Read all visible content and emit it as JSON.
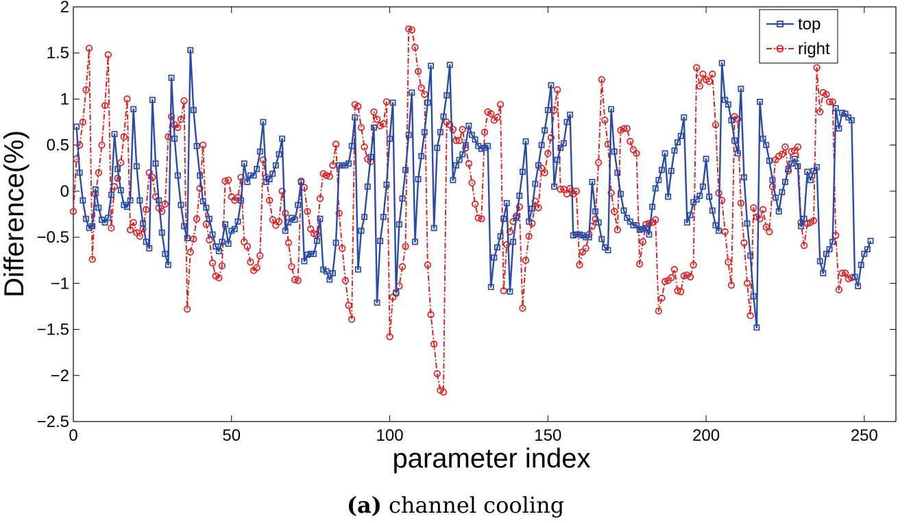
{
  "chart_data": {
    "type": "line",
    "title": "",
    "xlabel": "parameter index",
    "ylabel": "Difference(%)",
    "xlim": [
      0,
      260
    ],
    "ylim": [
      -2.5,
      2
    ],
    "xticks": [
      0,
      50,
      100,
      150,
      200,
      250
    ],
    "xtick_labels": [
      "0",
      "50",
      "100",
      "150",
      "200",
      "250"
    ],
    "yticks": [
      -2.5,
      -2,
      -1.5,
      -1,
      -0.5,
      0,
      0.5,
      1,
      1.5,
      2
    ],
    "ytick_labels": [
      "−2.5",
      "−2",
      "−1.5",
      "−1",
      "−0.5",
      "0",
      "0.5",
      "1",
      "1.5",
      "2"
    ],
    "legend_position": "top-right",
    "series": [
      {
        "name": "top",
        "color": "#2a4aa8",
        "marker": "square",
        "linestyle": "solid",
        "x_start": 1,
        "values": [
          0.7,
          0.2,
          -0.1,
          -0.3,
          -0.4,
          -0.38,
          0.02,
          -0.18,
          -0.31,
          -0.34,
          -0.29,
          -0.04,
          0.62,
          0.24,
          0.01,
          -0.15,
          -0.17,
          -0.1,
          0.89,
          0.27,
          -0.1,
          -0.35,
          -0.55,
          -0.62,
          0.99,
          0.3,
          -0.1,
          -0.45,
          -0.68,
          -0.8,
          1.23,
          0.57,
          0.17,
          -0.15,
          -0.38,
          -0.51,
          1.53,
          0.88,
          0.49,
          0.17,
          -0.11,
          -0.18,
          -0.3,
          -0.47,
          -0.6,
          -0.65,
          -0.55,
          -0.36,
          -0.57,
          -0.43,
          -0.41,
          -0.33,
          -0.1,
          0.3,
          0.1,
          0.17,
          0.17,
          0.24,
          0.43,
          0.75,
          0.1,
          0.13,
          0.19,
          0.28,
          0.4,
          0.57,
          -0.43,
          -0.34,
          -0.29,
          -0.31,
          -0.15,
          0.1,
          -0.76,
          -0.69,
          -0.68,
          -0.68,
          -0.54,
          -0.3,
          -0.85,
          -0.87,
          -0.96,
          -0.89,
          -0.56,
          0.28,
          0.28,
          0.28,
          0.3,
          0.49,
          0.8,
          -0.85,
          -0.43,
          -0.28,
          0.05,
          0.37,
          0.69,
          -1.21,
          -0.54,
          -0.28,
          0.07,
          0.57,
          0.96,
          -1.1,
          -0.36,
          -0.08,
          0.23,
          0.61,
          1.07,
          -0.55,
          0.13,
          0.38,
          0.64,
          0.96,
          1.36,
          -0.4,
          0.47,
          0.64,
          0.81,
          1.04,
          1.37,
          0.12,
          0.28,
          0.34,
          0.4,
          0.5,
          0.71,
          0.61,
          0.56,
          0.49,
          0.46,
          0.47,
          0.49,
          -1.04,
          -0.72,
          -0.61,
          -0.49,
          -0.3,
          -0.13,
          -1.09,
          -0.55,
          -0.29,
          -0.05,
          0.21,
          0.54,
          -0.33,
          -0.19,
          0.08,
          0.28,
          0.5,
          0.66,
          0.88,
          1.15,
          0.05,
          0.34,
          0.47,
          0.52,
          0.75,
          0.83,
          -0.48,
          -0.47,
          -0.47,
          -0.48,
          -0.5,
          -0.5,
          0.1,
          -0.22,
          -0.34,
          -0.52,
          -0.61,
          -0.64,
          0.89,
          0.43,
          0.2,
          -0.03,
          -0.21,
          -0.29,
          -0.33,
          -0.37,
          -0.37,
          -0.42,
          -0.41,
          -0.4,
          -0.47,
          -0.17,
          0.03,
          0.12,
          0.23,
          0.41,
          -0.06,
          0.22,
          0.44,
          0.53,
          0.6,
          0.8,
          -0.34,
          -0.26,
          -0.12,
          -0.09,
          -0.05,
          0.05,
          0.35,
          -0.06,
          -0.21,
          -0.37,
          -0.43,
          1.39,
          0.99,
          0.94,
          0.77,
          0.55,
          0.41,
          1.11,
          0.15,
          -0.35,
          -0.7,
          -1.14,
          -1.48,
          0.97,
          0.57,
          0.5,
          0.33,
          0.12,
          -0.07,
          -0.22,
          -0.01,
          0.1,
          0.24,
          0.3,
          0.35,
          0.27,
          -0.38,
          -0.3,
          0.21,
          0.12,
          0.22,
          0.26,
          -0.76,
          -0.89,
          -0.68,
          -0.63,
          -0.55,
          0.9,
          0.68,
          0.85,
          0.84,
          0.8,
          0.77,
          -0.93,
          -1.03,
          -0.8,
          -0.68,
          -0.63,
          -0.54
        ]
      },
      {
        "name": "right",
        "color": "#e02020",
        "marker": "circle",
        "linestyle": "dashdot",
        "x_start": 0,
        "values": [
          -0.22,
          0.35,
          0.5,
          0.75,
          1.1,
          1.55,
          -0.74,
          -0.03,
          0.2,
          0.5,
          0.93,
          1.48,
          -0.4,
          0.05,
          0.14,
          0.31,
          0.59,
          1.0,
          -0.42,
          -0.34,
          -0.45,
          -0.49,
          -0.41,
          -0.2,
          0.2,
          0.15,
          -0.06,
          -0.18,
          -0.22,
          -0.14,
          0.59,
          0.81,
          0.72,
          0.69,
          0.78,
          0.98,
          -1.28,
          -0.66,
          -0.52,
          -0.3,
          0.03,
          0.5,
          -0.36,
          -0.53,
          -0.78,
          -0.92,
          -0.94,
          -0.81,
          0.11,
          0.12,
          -0.06,
          -0.1,
          -0.07,
          0.15,
          -0.55,
          -0.6,
          -0.77,
          -0.86,
          -0.83,
          -0.7,
          0.34,
          0.15,
          -0.1,
          -0.31,
          -0.37,
          -0.33,
          0.0,
          -0.24,
          -0.56,
          -0.82,
          -0.96,
          -0.97,
          0.11,
          0.04,
          -0.22,
          -0.41,
          -0.46,
          -0.47,
          -0.08,
          0.19,
          0.17,
          0.16,
          0.28,
          0.51,
          -0.24,
          -0.62,
          -0.97,
          -1.24,
          -1.39,
          0.94,
          0.92,
          0.69,
          0.48,
          0.35,
          0.32,
          0.86,
          0.78,
          0.71,
          0.73,
          0.97,
          -1.58,
          -1.15,
          -1.11,
          -1.03,
          -0.82,
          -0.6,
          1.76,
          1.75,
          1.56,
          1.3,
          1.12,
          1.05,
          -0.8,
          -1.34,
          -1.66,
          -1.98,
          -2.16,
          -2.18,
          0.75,
          0.72,
          0.67,
          0.55,
          0.55,
          0.67,
          0.47,
          0.3,
          0.09,
          -0.14,
          -0.29,
          -0.3,
          0.64,
          0.86,
          0.84,
          0.77,
          0.8,
          0.94,
          -1.08,
          -0.58,
          -0.44,
          -0.33,
          -0.27,
          -0.17,
          -1.27,
          -0.75,
          -0.49,
          -0.35,
          -0.11,
          -0.18,
          0.25,
          0.2,
          0.41,
          0.58,
          0.88,
          1.1,
          0.02,
          0.02,
          -0.03,
          0.03,
          -0.03,
          0.0,
          -0.8,
          -0.66,
          -0.62,
          -0.47,
          -0.38,
          -0.3,
          0.31,
          1.21,
          0.77,
          0.51,
          -0.02,
          -0.22,
          -0.42,
          0.66,
          0.68,
          0.68,
          0.54,
          0.45,
          0.41,
          -0.79,
          -0.55,
          -0.36,
          -0.35,
          -0.34,
          -0.31,
          -1.3,
          -1.16,
          -0.98,
          -0.97,
          -0.94,
          -0.85,
          -1.08,
          -1.09,
          -0.92,
          -0.91,
          -0.93,
          -0.8,
          1.34,
          1.14,
          1.27,
          1.21,
          1.19,
          1.27,
          0.72,
          -0.02,
          -0.1,
          -0.44,
          -0.77,
          -1.02,
          0.81,
          0.78,
          -0.13,
          -0.56,
          -1.0,
          -1.35,
          -0.18,
          -0.28,
          -0.3,
          -0.2,
          -0.39,
          -0.44,
          0.05,
          0.34,
          0.38,
          0.4,
          0.48,
          0.22,
          0.43,
          0.44,
          0.48,
          -0.34,
          -0.59,
          -0.35,
          -0.34,
          -0.32,
          1.34,
          0.86,
          1.07,
          1.05,
          0.97,
          0.97,
          -0.48,
          -1.07,
          -0.89,
          -0.89,
          -0.95,
          -0.94
        ]
      }
    ]
  },
  "caption": {
    "label": "(a)",
    "text": "channel cooling"
  }
}
